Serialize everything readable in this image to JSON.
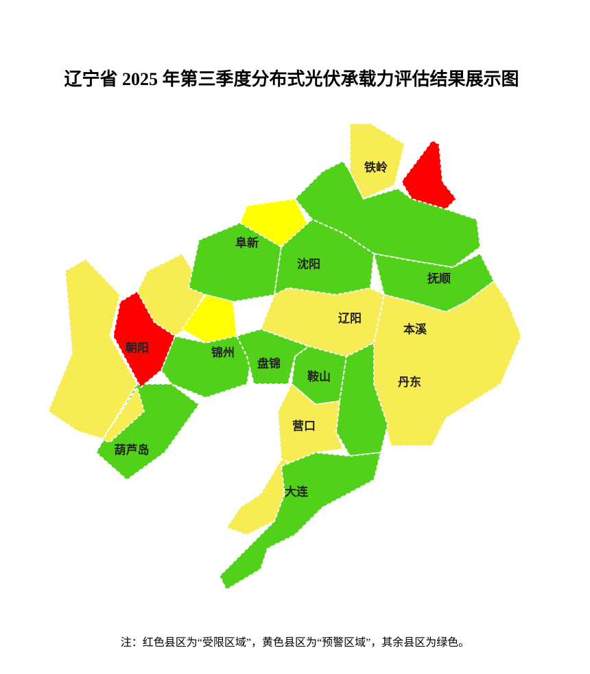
{
  "title": "辽宁省 2025 年第三季度分布式光伏承载力评估结果展示图",
  "cities": [
    {
      "label": "铁岭"
    },
    {
      "label": "阜新"
    },
    {
      "label": "沈阳"
    },
    {
      "label": "抚顺"
    },
    {
      "label": "辽阳"
    },
    {
      "label": "本溪"
    },
    {
      "label": "朝阳"
    },
    {
      "label": "锦州"
    },
    {
      "label": "盘锦"
    },
    {
      "label": "鞍山"
    },
    {
      "label": "丹东"
    },
    {
      "label": "营口"
    },
    {
      "label": "葫芦岛"
    },
    {
      "label": "大连"
    }
  ],
  "note": "注：红色县区为“受限区域”，黄色县区为“预警区域”，其余县区为绿色。"
}
